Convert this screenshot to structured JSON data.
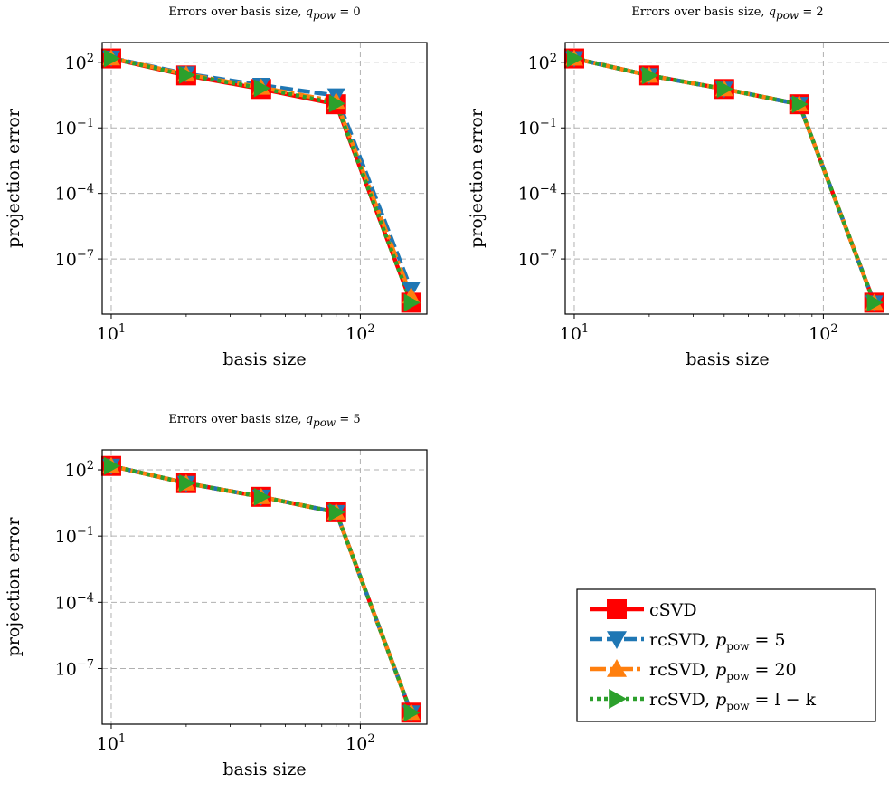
{
  "chart_data": [
    {
      "type": "line",
      "title": "Errors over basis size, ",
      "title_math": {
        "var": "q",
        "sub": "pow",
        "rest": " = 0"
      },
      "xlabel": "basis size",
      "ylabel": "projection error",
      "xscale": "log",
      "yscale": "log",
      "xlim": [
        9.2,
        185
      ],
      "ylim": [
        3e-10,
        800
      ],
      "grid": true,
      "x": [
        10,
        20,
        40,
        80,
        160
      ],
      "series": [
        {
          "name": "cSVD",
          "values": [
            150,
            25,
            6,
            1.2,
            1e-09
          ]
        },
        {
          "name": "rcSVD, p_pow = 5",
          "values": [
            160,
            30,
            9,
            3,
            4e-09
          ]
        },
        {
          "name": "rcSVD, p_pow = 20",
          "values": [
            155,
            28,
            7,
            1.6,
            2e-09
          ]
        },
        {
          "name": "rcSVD, p_pow = l − k",
          "values": [
            150,
            26,
            6.5,
            1.3,
            1e-09
          ]
        }
      ]
    },
    {
      "type": "line",
      "title": "Errors over basis size, ",
      "title_math": {
        "var": "q",
        "sub": "pow",
        "rest": " = 2"
      },
      "xlabel": "basis size",
      "ylabel": "projection error",
      "xscale": "log",
      "yscale": "log",
      "xlim": [
        9.2,
        185
      ],
      "ylim": [
        3e-10,
        800
      ],
      "grid": true,
      "x": [
        10,
        20,
        40,
        80,
        160
      ],
      "series": [
        {
          "name": "cSVD",
          "values": [
            150,
            25,
            6,
            1.2,
            1e-09
          ]
        },
        {
          "name": "rcSVD, p_pow = 5",
          "values": [
            150,
            25,
            6,
            1.2,
            1e-09
          ]
        },
        {
          "name": "rcSVD, p_pow = 20",
          "values": [
            150,
            25,
            6,
            1.2,
            1e-09
          ]
        },
        {
          "name": "rcSVD, p_pow = l − k",
          "values": [
            150,
            25,
            6,
            1.2,
            1e-09
          ]
        }
      ]
    },
    {
      "type": "line",
      "title": "Errors over basis size, ",
      "title_math": {
        "var": "q",
        "sub": "pow",
        "rest": " = 5"
      },
      "xlabel": "basis size",
      "ylabel": "projection error",
      "xscale": "log",
      "yscale": "log",
      "xlim": [
        9.2,
        185
      ],
      "ylim": [
        3e-10,
        800
      ],
      "grid": true,
      "x": [
        10,
        20,
        40,
        80,
        160
      ],
      "series": [
        {
          "name": "cSVD",
          "values": [
            150,
            25,
            6,
            1.2,
            1e-09
          ]
        },
        {
          "name": "rcSVD, p_pow = 5",
          "values": [
            150,
            25,
            6,
            1.2,
            1e-09
          ]
        },
        {
          "name": "rcSVD, p_pow = 20",
          "values": [
            150,
            25,
            6,
            1.2,
            1e-09
          ]
        },
        {
          "name": "rcSVD, p_pow = l − k",
          "values": [
            150,
            25,
            6,
            1.2,
            1e-09
          ]
        }
      ]
    }
  ],
  "x_ticks": [
    {
      "value": 10,
      "base": "10",
      "exp": "1"
    },
    {
      "value": 100,
      "base": "10",
      "exp": "2"
    }
  ],
  "y_ticks": [
    {
      "value": 100,
      "base": "10",
      "exp": "2"
    },
    {
      "value": 0.1,
      "base": "10",
      "exp": "−1"
    },
    {
      "value": 0.0001,
      "base": "10",
      "exp": "−4"
    },
    {
      "value": 1e-07,
      "base": "10",
      "exp": "−7"
    }
  ],
  "styles": [
    {
      "color": "#ff0000",
      "marker": "square",
      "dash": ""
    },
    {
      "color": "#1f77b4",
      "marker": "triangle-down",
      "dash": "14,5"
    },
    {
      "color": "#ff7f0e",
      "marker": "triangle-up",
      "dash": "18,4,4,4"
    },
    {
      "color": "#2ca02c",
      "marker": "triangle-right",
      "dash": "4,4"
    }
  ],
  "legend": {
    "placement": "lower-right",
    "entries": [
      {
        "label": "cSVD"
      },
      {
        "label": "rcSVD, ",
        "var": "p",
        "sub": "pow",
        "rest": " = 5"
      },
      {
        "label": "rcSVD, ",
        "var": "p",
        "sub": "pow",
        "rest": " = 20"
      },
      {
        "label": "rcSVD, ",
        "var": "p",
        "sub": "pow",
        "rest": " = l − k"
      }
    ]
  }
}
